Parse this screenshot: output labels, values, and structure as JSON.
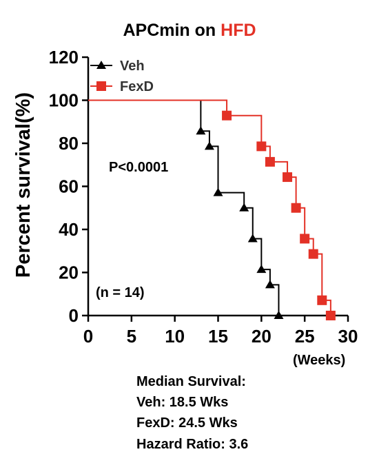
{
  "colors": {
    "veh": "#000000",
    "fexd": "#e33126",
    "axis": "#000000"
  },
  "title_prefix": "APCmin on ",
  "title_accent": "HFD",
  "p_value": "P<0.0001",
  "n_label": "(n = 14)",
  "x_units": "(Weeks)",
  "summary": {
    "heading": "Median Survival:",
    "veh": "Veh: 18.5 Wks",
    "fexd": "FexD: 24.5  Wks",
    "hazard": "Hazard Ratio: 3.6"
  },
  "chart_data": {
    "type": "line",
    "title": "APCmin on HFD",
    "ylabel": "Percent survival(%)",
    "xlabel": "(Weeks)",
    "xlim": [
      0,
      30
    ],
    "ylim": [
      0,
      120
    ],
    "x_ticks": [
      0,
      5,
      10,
      15,
      20,
      25,
      30
    ],
    "y_ticks": [
      0,
      20,
      40,
      60,
      80,
      100,
      120
    ],
    "legend_position": "top-left",
    "series": [
      {
        "name": "Veh",
        "marker": "triangle",
        "color": "#000000",
        "steps": [
          [
            0,
            100
          ],
          [
            13,
            85.7
          ],
          [
            14,
            78.6
          ],
          [
            15,
            57.1
          ],
          [
            18,
            50.0
          ],
          [
            19,
            35.7
          ],
          [
            20,
            21.4
          ],
          [
            21,
            14.3
          ],
          [
            22,
            0
          ]
        ]
      },
      {
        "name": "FexD",
        "marker": "square",
        "color": "#e33126",
        "steps": [
          [
            0,
            100
          ],
          [
            16,
            92.9
          ],
          [
            20,
            78.6
          ],
          [
            21,
            71.4
          ],
          [
            23,
            64.3
          ],
          [
            24,
            50.0
          ],
          [
            25,
            35.7
          ],
          [
            26,
            28.6
          ],
          [
            27,
            7.1
          ],
          [
            28,
            0
          ]
        ]
      }
    ]
  }
}
